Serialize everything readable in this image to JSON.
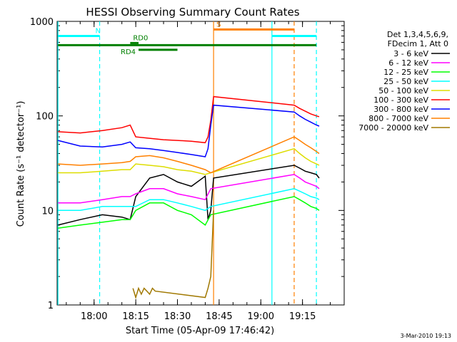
{
  "chart_data": {
    "type": "line",
    "title": "HESSI Observing Summary Count Rates",
    "xlabel": "Start Time (05-Apr-09 17:46:42)",
    "ylabel": "Count Rate (s⁻¹ detector⁻¹)",
    "yscale": "log",
    "ylim": [
      1,
      1000
    ],
    "xlim": [
      "17:46:42",
      "19:30:00"
    ],
    "x_ticks": [
      "18:00",
      "18:15",
      "18:30",
      "18:45",
      "19:00",
      "19:15"
    ],
    "y_ticks": [
      "1",
      "10",
      "100",
      "1000"
    ],
    "footer": "3-Mar-2010 19:13",
    "legend_header": [
      "Det 1,3,4,5,6,9,",
      "FDecim 1, Att 0"
    ],
    "legend_position": "right",
    "series": [
      {
        "name": "3 - 6 keV",
        "color": "#000000",
        "x": [
          "17:47",
          "17:55",
          "18:03",
          "18:10",
          "18:13",
          "18:15",
          "18:20",
          "18:25",
          "18:30",
          "18:35",
          "18:40",
          "18:41",
          "18:42",
          "18:43",
          "19:12",
          "19:14",
          "19:16",
          "19:18",
          "19:20",
          "19:21"
        ],
        "y": [
          7,
          8,
          9,
          8.5,
          8,
          14,
          22,
          24,
          20,
          18,
          23,
          8,
          10,
          22,
          30,
          28,
          26,
          25,
          24,
          22
        ]
      },
      {
        "name": "6 - 12 keV",
        "color": "#ff00ff",
        "x": [
          "17:47",
          "17:55",
          "18:03",
          "18:10",
          "18:13",
          "18:15",
          "18:20",
          "18:25",
          "18:30",
          "18:35",
          "18:40",
          "18:42",
          "19:12",
          "19:14",
          "19:16",
          "19:18",
          "19:20",
          "19:21"
        ],
        "y": [
          12,
          12,
          13,
          14,
          14,
          15,
          17,
          17,
          15,
          14,
          13,
          17,
          24,
          22,
          20,
          19,
          18,
          17
        ]
      },
      {
        "name": "12 - 25 keV",
        "color": "#00ff00",
        "x": [
          "17:47",
          "17:55",
          "18:03",
          "18:10",
          "18:13",
          "18:15",
          "18:20",
          "18:25",
          "18:30",
          "18:35",
          "18:40",
          "18:42",
          "19:12",
          "19:14",
          "19:16",
          "19:18",
          "19:20",
          "19:21"
        ],
        "y": [
          6.5,
          7,
          7.5,
          8,
          8,
          10,
          12,
          12,
          10,
          9,
          7,
          9,
          14,
          13,
          12,
          11,
          10.5,
          10
        ]
      },
      {
        "name": "25 - 50 keV",
        "color": "#00ffff",
        "x": [
          "17:47",
          "17:55",
          "18:03",
          "18:10",
          "18:13",
          "18:15",
          "18:20",
          "18:25",
          "18:30",
          "18:35",
          "18:40",
          "18:42",
          "19:12",
          "19:14",
          "19:16",
          "19:18",
          "19:20",
          "19:21"
        ],
        "y": [
          10,
          10,
          11,
          11,
          11,
          11,
          13,
          13,
          12,
          11,
          10,
          11,
          17,
          16,
          15,
          14,
          13.5,
          13
        ]
      },
      {
        "name": "50 - 100 keV",
        "color": "#dddd00",
        "x": [
          "17:47",
          "17:55",
          "18:03",
          "18:10",
          "18:13",
          "18:15",
          "18:20",
          "18:25",
          "18:30",
          "18:35",
          "18:40",
          "18:42",
          "19:12",
          "19:14",
          "19:16",
          "19:18",
          "19:20",
          "19:21"
        ],
        "y": [
          25,
          25,
          26,
          27,
          27,
          31,
          30,
          29,
          27,
          26,
          24,
          25,
          45,
          40,
          36,
          33,
          31,
          30
        ]
      },
      {
        "name": "100 - 300 keV",
        "color": "#ff0000",
        "x": [
          "17:47",
          "17:55",
          "18:03",
          "18:10",
          "18:13",
          "18:15",
          "18:20",
          "18:25",
          "18:30",
          "18:35",
          "18:40",
          "18:41",
          "18:42",
          "18:43",
          "19:12",
          "19:14",
          "19:16",
          "19:18",
          "19:20",
          "19:21"
        ],
        "y": [
          68,
          66,
          70,
          75,
          80,
          60,
          58,
          56,
          55,
          54,
          52,
          60,
          90,
          160,
          130,
          120,
          112,
          105,
          100,
          98
        ]
      },
      {
        "name": "300 - 800 keV",
        "color": "#0000ff",
        "x": [
          "17:47",
          "17:55",
          "18:03",
          "18:10",
          "18:13",
          "18:15",
          "18:20",
          "18:25",
          "18:30",
          "18:35",
          "18:40",
          "18:41",
          "18:42",
          "18:43",
          "19:12",
          "19:14",
          "19:16",
          "19:18",
          "19:20",
          "19:21"
        ],
        "y": [
          55,
          48,
          47,
          50,
          53,
          46,
          45,
          43,
          41,
          39,
          37,
          45,
          80,
          130,
          110,
          100,
          92,
          86,
          80,
          78
        ]
      },
      {
        "name": "800 - 7000 keV",
        "color": "#ff8000",
        "x": [
          "17:47",
          "17:55",
          "18:03",
          "18:10",
          "18:13",
          "18:15",
          "18:20",
          "18:25",
          "18:30",
          "18:35",
          "18:40",
          "18:42",
          "19:12",
          "19:14",
          "19:16",
          "19:18",
          "19:20",
          "19:21"
        ],
        "y": [
          31,
          30,
          31,
          32,
          33,
          37,
          38,
          36,
          33,
          30,
          27,
          25,
          60,
          55,
          50,
          46,
          42,
          40
        ]
      },
      {
        "name": "7000 - 20000 keV",
        "color": "#a07800",
        "x": [
          "18:14",
          "18:15",
          "18:16",
          "18:17",
          "18:18",
          "18:19",
          "18:20",
          "18:21",
          "18:22",
          "18:40",
          "18:41",
          "18:42",
          "18:43"
        ],
        "y": [
          1.5,
          1.2,
          1.5,
          1.3,
          1.5,
          1.4,
          1.3,
          1.5,
          1.4,
          1.2,
          1.5,
          2,
          10
        ]
      }
    ],
    "flag_bars": [
      {
        "label": "N",
        "color": "#00ffff",
        "segments": [
          [
            "17:47",
            "18:02"
          ],
          [
            "19:04",
            "19:20"
          ]
        ],
        "level": 700
      },
      {
        "label": "S",
        "color": "#ff8000",
        "segments": [
          [
            "18:43",
            "19:12"
          ]
        ],
        "level": 820
      },
      {
        "label": "",
        "color": "#008000",
        "segments": [
          [
            "17:47",
            "19:20"
          ]
        ],
        "level": 560
      },
      {
        "label": "RD0",
        "color": "#008000",
        "segments": [
          [
            "18:13",
            "18:16"
          ]
        ],
        "level": 590
      },
      {
        "label": "RD4",
        "color": "#008000",
        "segments": [
          [
            "18:16",
            "18:30"
          ]
        ],
        "level": 500
      }
    ],
    "vertical_markers": [
      {
        "x": "17:47",
        "style": "solid",
        "color": "#00ffff"
      },
      {
        "x": "18:02",
        "style": "dashed",
        "color": "#00ffff"
      },
      {
        "x": "18:43",
        "style": "solid",
        "color": "#ff8000"
      },
      {
        "x": "19:04",
        "style": "solid",
        "color": "#00ffff"
      },
      {
        "x": "19:12",
        "style": "dashed",
        "color": "#ff8000"
      },
      {
        "x": "19:20",
        "style": "dashed",
        "color": "#00ffff"
      }
    ]
  }
}
